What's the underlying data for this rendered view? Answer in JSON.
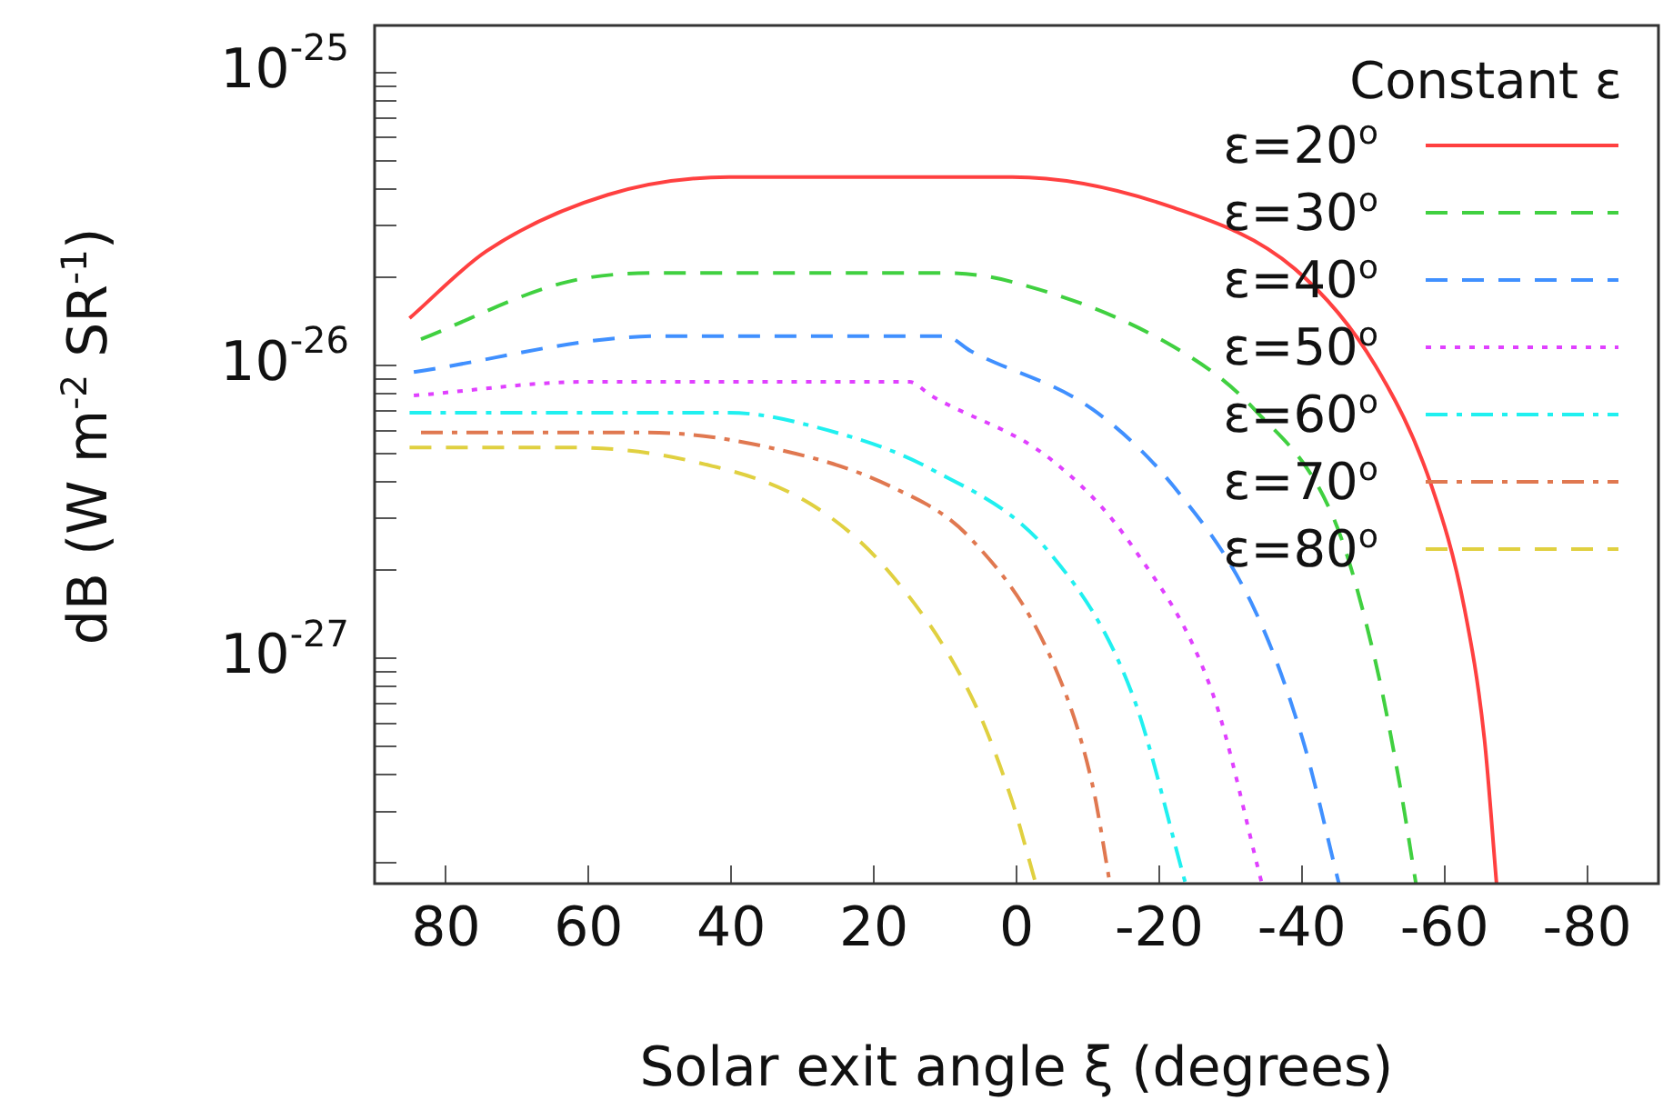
{
  "chart_data": {
    "type": "line",
    "xlabel": "Solar exit angle ξ (degrees)",
    "ylabel": "dB (W m$^{-2}$ SR$^{-1}$)",
    "legend_title": "Constant ε",
    "legend": "top right",
    "grid": false,
    "log": "y",
    "marker": "none",
    "xlim": [
      90,
      -90
    ],
    "xticks": [
      80,
      60,
      40,
      20,
      0,
      -20,
      -40,
      -60,
      -80
    ],
    "ylim": [
      1.7e-28,
      1.45e-25
    ],
    "yticks": [
      {
        "value": 1e-25,
        "label": "10$^{-25}$"
      },
      {
        "value": 1e-26,
        "label": "10$^{-26}$"
      },
      {
        "value": 1e-27,
        "label": "10$^{-27}$"
      },
      {
        "value": 9e-26,
        "label": null
      },
      {
        "value": 8e-26,
        "label": null
      },
      {
        "value": 7e-26,
        "label": null
      },
      {
        "value": 6e-26,
        "label": null
      },
      {
        "value": 5e-26,
        "label": null
      },
      {
        "value": 4e-26,
        "label": null
      },
      {
        "value": 3e-26,
        "label": null
      },
      {
        "value": 2e-26,
        "label": null
      },
      {
        "value": 9e-27,
        "label": null
      },
      {
        "value": 8e-27,
        "label": null
      },
      {
        "value": 7e-27,
        "label": null
      },
      {
        "value": 6e-27,
        "label": null
      },
      {
        "value": 5e-27,
        "label": null
      },
      {
        "value": 4e-27,
        "label": null
      },
      {
        "value": 3e-27,
        "label": null
      },
      {
        "value": 2e-27,
        "label": null
      },
      {
        "value": 9e-28,
        "label": null
      },
      {
        "value": 8e-28,
        "label": null
      },
      {
        "value": 7e-28,
        "label": null
      },
      {
        "value": 6e-28,
        "label": null
      },
      {
        "value": 5e-28,
        "label": null
      },
      {
        "value": 4e-28,
        "label": null
      },
      {
        "value": 3e-28,
        "label": null
      },
      {
        "value": 2e-28,
        "label": null
      }
    ],
    "series": [
      {
        "name": "ε=20$^{o}$",
        "color": "#ff4040",
        "line_style": "solid",
        "x": [
          85.1,
          74.3,
          57.3,
          40.3,
          0.6,
          -22,
          -39,
          -50.3,
          -58.2,
          -62.8,
          -65.6,
          -67.3
        ],
        "values": [
          1.45e-26,
          2.46e-26,
          3.83e-26,
          4.4e-26,
          4.4e-26,
          3.46e-26,
          2.14e-26,
          1e-26,
          3.87e-27,
          1.48e-27,
          5.3e-28,
          1.7e-28
        ]
      },
      {
        "name": "ε=30$^{o}$",
        "color": "#40d040",
        "line_style": "dashed",
        "x": [
          83.5,
          63,
          50,
          10,
          0.6,
          -22,
          -33.3,
          -44.6,
          -50.3,
          -53.7,
          -56
        ],
        "values": [
          1.23e-26,
          1.93e-26,
          2.07e-26,
          2.07e-26,
          1.93e-26,
          1.16e-26,
          7.1e-27,
          2.95e-27,
          9.8e-28,
          3.74e-28,
          1.7e-28
        ]
      },
      {
        "name": "ε=40$^{o}$",
        "color": "#4090ff",
        "line_style": "dashed",
        "x": [
          84.5,
          50,
          10,
          6.4,
          -10.6,
          -22,
          -33.3,
          -40.1,
          -45.2
        ],
        "values": [
          9.5e-27,
          1.26e-26,
          1.26e-26,
          1.12e-26,
          7.1e-27,
          3.87e-27,
          1.48e-27,
          5.3e-28,
          1.7e-28
        ]
      },
      {
        "name": "ε=50$^{o}$",
        "color": "#e040ff",
        "line_style": "dotted",
        "x": [
          84.5,
          60,
          15,
          12,
          -5,
          -16.3,
          -27.6,
          -34.4
        ],
        "values": [
          7.9e-27,
          8.8e-27,
          8.8e-27,
          7.9e-27,
          4.74e-27,
          2.4e-27,
          7.46e-28,
          1.7e-28
        ]
      },
      {
        "name": "ε=60$^{o}$",
        "color": "#20f0f0",
        "line_style": "dashdot",
        "x": [
          85.1,
          40.3,
          29,
          12,
          -5,
          -16.3,
          -23.7
        ],
        "values": [
          6.9e-27,
          6.9e-27,
          6.24e-27,
          4.43e-27,
          2.24e-27,
          7.46e-28,
          1.7e-28
        ]
      },
      {
        "name": "ε=70$^{o}$",
        "color": "#e07850",
        "line_style": "dashdot",
        "x": [
          83.5,
          51.6,
          34.7,
          17.7,
          6.4,
          -5,
          -10.6,
          -13.1
        ],
        "values": [
          5.9e-27,
          5.9e-27,
          5.25e-27,
          3.87e-27,
          2.56e-27,
          9.8e-28,
          3.74e-28,
          1.7e-28
        ]
      },
      {
        "name": "ε=80$^{o}$",
        "color": "#e0d040",
        "line_style": "dashed",
        "x": [
          85.1,
          63,
          46,
          29,
          17.7,
          6.4,
          0.7,
          -2.7
        ],
        "values": [
          5.25e-27,
          5.25e-27,
          4.74e-27,
          3.38e-27,
          1.95e-27,
          7.46e-28,
          3.3e-28,
          1.7e-28
        ]
      }
    ]
  }
}
